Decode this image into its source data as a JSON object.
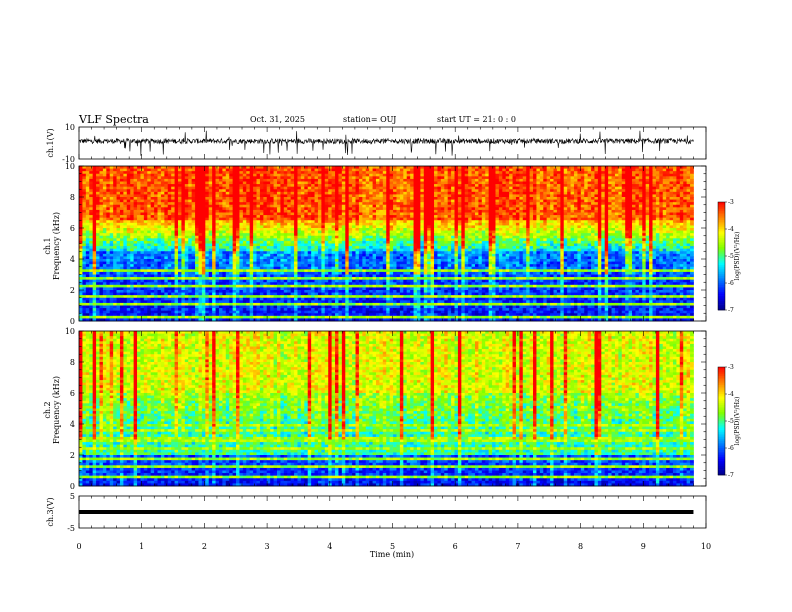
{
  "header": {
    "title": "VLF Spectra",
    "date": "Oct. 31, 2025",
    "station": "station= OUJ",
    "start_ut": "start  UT =   21: 0  : 0"
  },
  "colors": {
    "colormap": [
      "#00008a",
      "#0000ff",
      "#0080ff",
      "#00ffff",
      "#80ff00",
      "#ffff00",
      "#ff8000",
      "#ff0000"
    ]
  },
  "chart_data": [
    {
      "type": "line",
      "panel": "ch1-waveform",
      "ylabel": "ch.1(V)",
      "ylim": [
        -10,
        10
      ],
      "ytick_labels": [
        "10",
        "-10"
      ],
      "xlim": [
        0,
        10
      ],
      "note_values": "continuous noisy waveform centred near 0 V with spikes up to about +8 V and down to about -8 V"
    },
    {
      "type": "heatmap",
      "panel": "ch1-spectrogram",
      "ylabel": "ch.1\nFrequency (kHz)",
      "ylim": [
        0,
        10
      ],
      "ytick_labels": [
        "0",
        "2",
        "4",
        "6",
        "8",
        "10"
      ],
      "xlim": [
        0,
        9.8
      ],
      "colorbar": {
        "label": "log(PSD)(V²/Hz)",
        "range": [
          -7,
          -3
        ],
        "tick_labels": [
          "-3",
          "-4",
          "-5",
          "-6",
          "-7"
        ]
      }
    },
    {
      "type": "heatmap",
      "panel": "ch2-spectrogram",
      "ylabel": "ch.2\nFrequency (kHz)",
      "ylim": [
        0,
        10
      ],
      "ytick_labels": [
        "0",
        "2",
        "4",
        "6",
        "8",
        "10"
      ],
      "xlim": [
        0,
        9.8
      ],
      "colorbar": {
        "label": "log(PSD)(V²/Hz)",
        "range": [
          -7,
          -3
        ],
        "tick_labels": [
          "-3",
          "-4",
          "-5",
          "-6",
          "-7"
        ]
      }
    },
    {
      "type": "line",
      "panel": "ch3-waveform",
      "ylabel": "ch.3(V)",
      "ylim": [
        -5,
        5
      ],
      "ytick_labels": [
        "5",
        "-5"
      ],
      "xlim": [
        0,
        10
      ],
      "x": [
        0,
        9.8
      ],
      "y": [
        0,
        0
      ]
    }
  ],
  "xaxis": {
    "label": "Time (min)",
    "range": [
      0,
      10
    ],
    "tick_labels": [
      "0",
      "1",
      "2",
      "3",
      "4",
      "5",
      "6",
      "7",
      "8",
      "9",
      "10"
    ]
  }
}
